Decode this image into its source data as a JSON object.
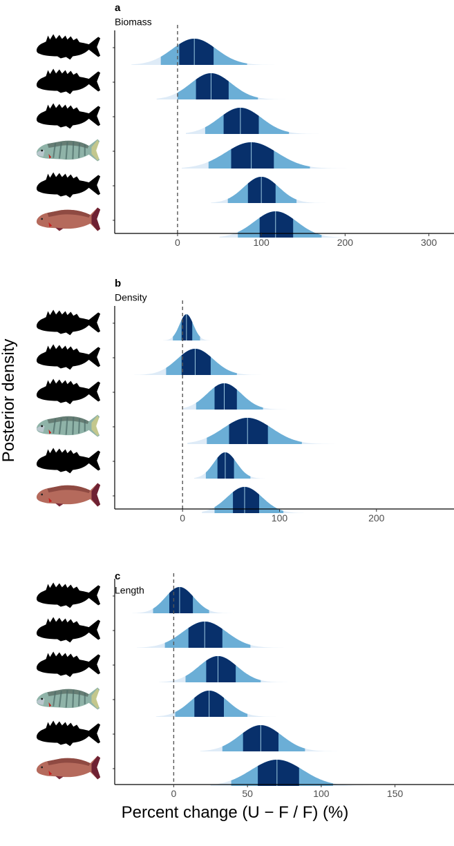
{
  "ylabel": "Posterior density",
  "xlabel": "Percent change (U − F / F) (%)",
  "colors": {
    "outer": "#6baed6",
    "inner": "#08306b",
    "tail": "#deebf7",
    "median_line": "#9ecae1",
    "reference_line": "#555555"
  },
  "species_icons": [
    "silhouette-fish-icon",
    "silhouette-fish-icon",
    "silhouette-fish-icon",
    "striped-fish-icon",
    "silhouette-fish-icon",
    "red-snapper-icon"
  ],
  "chart_data": [
    {
      "type": "ridgeline",
      "letter": "a",
      "title": "Biomass",
      "xlim": [
        -75,
        330
      ],
      "xticks": [
        0,
        100,
        200,
        300
      ],
      "reference_x": 0,
      "species": [
        {
          "median": 20,
          "inner": [
            2,
            43
          ],
          "outer": [
            -20,
            83
          ],
          "tail": [
            -55,
            150
          ]
        },
        {
          "median": 40,
          "inner": [
            22,
            61
          ],
          "outer": [
            0,
            96
          ],
          "tail": [
            -25,
            150
          ]
        },
        {
          "median": 75,
          "inner": [
            55,
            97
          ],
          "outer": [
            33,
            133
          ],
          "tail": [
            10,
            180
          ]
        },
        {
          "median": 88,
          "inner": [
            64,
            115
          ],
          "outer": [
            37,
            158
          ],
          "tail": [
            5,
            245
          ]
        },
        {
          "median": 100,
          "inner": [
            84,
            117
          ],
          "outer": [
            60,
            142
          ],
          "tail": [
            40,
            185
          ]
        },
        {
          "median": 117,
          "inner": [
            98,
            138
          ],
          "outer": [
            72,
            172
          ],
          "tail": [
            50,
            215
          ]
        }
      ]
    },
    {
      "type": "ridgeline",
      "letter": "b",
      "title": "Density",
      "xlim": [
        -70,
        280
      ],
      "xticks": [
        0,
        100,
        200
      ],
      "reference_x": 0,
      "species": [
        {
          "median": 4,
          "inner": [
            -1,
            10
          ],
          "outer": [
            -10,
            18
          ],
          "tail": [
            -20,
            28
          ]
        },
        {
          "median": 13,
          "inner": [
            -1,
            29
          ],
          "outer": [
            -17,
            56
          ],
          "tail": [
            -50,
            170
          ]
        },
        {
          "median": 43,
          "inner": [
            33,
            56
          ],
          "outer": [
            14,
            83
          ],
          "tail": [
            0,
            125
          ]
        },
        {
          "median": 67,
          "inner": [
            48,
            88
          ],
          "outer": [
            25,
            123
          ],
          "tail": [
            5,
            180
          ]
        },
        {
          "median": 44,
          "inner": [
            36,
            53
          ],
          "outer": [
            24,
            70
          ],
          "tail": [
            12,
            85
          ]
        },
        {
          "median": 64,
          "inner": [
            52,
            79
          ],
          "outer": [
            33,
            104
          ],
          "tail": [
            20,
            125
          ]
        }
      ]
    },
    {
      "type": "ridgeline",
      "letter": "c",
      "title": "Length",
      "xlim": [
        -40,
        190
      ],
      "xticks": [
        0,
        50,
        100,
        150
      ],
      "reference_x": 0,
      "species": [
        {
          "median": 4,
          "inner": [
            -3,
            13
          ],
          "outer": [
            -14,
            24
          ],
          "tail": [
            -28,
            52
          ]
        },
        {
          "median": 21,
          "inner": [
            10,
            33
          ],
          "outer": [
            -6,
            52
          ],
          "tail": [
            -25,
            75
          ]
        },
        {
          "median": 30,
          "inner": [
            22,
            42
          ],
          "outer": [
            8,
            59
          ],
          "tail": [
            -10,
            85
          ]
        },
        {
          "median": 24,
          "inner": [
            14,
            34
          ],
          "outer": [
            1,
            50
          ],
          "tail": [
            -12,
            72
          ]
        },
        {
          "median": 59,
          "inner": [
            47,
            71
          ],
          "outer": [
            33,
            89
          ],
          "tail": [
            18,
            115
          ]
        },
        {
          "median": 70,
          "inner": [
            57,
            85
          ],
          "outer": [
            39,
            108
          ],
          "tail": [
            25,
            132
          ]
        }
      ]
    }
  ]
}
